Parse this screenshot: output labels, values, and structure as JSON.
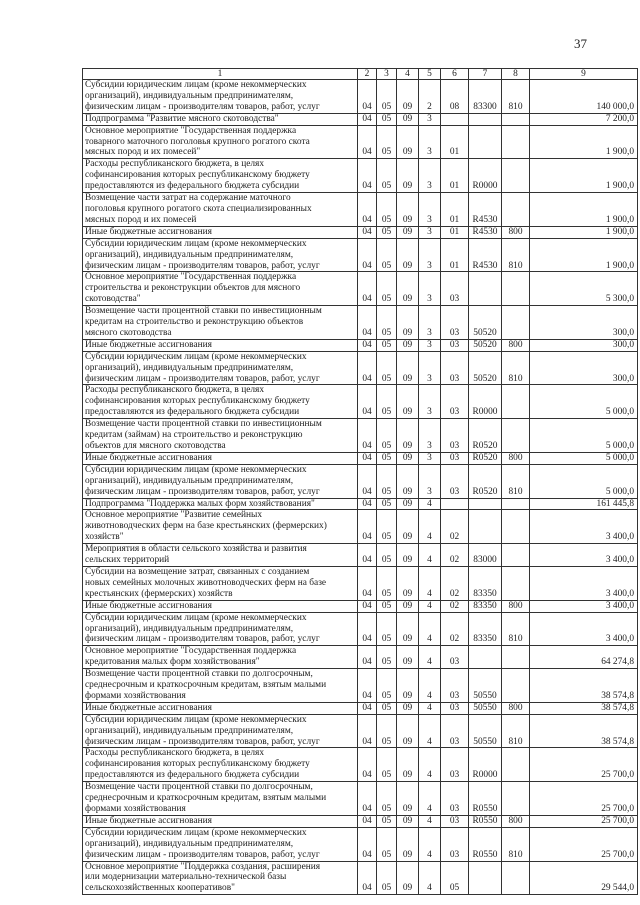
{
  "page_number": "37",
  "header": [
    "1",
    "2",
    "3",
    "4",
    "5",
    "6",
    "7",
    "8",
    "9"
  ],
  "rows": [
    [
      "Субсидии юридическим лицам (кроме некоммерческих\nорганизаций), индивидуальным предпринимателям,\nфизическим лицам - производителям товаров, работ, услуг",
      "04",
      "05",
      "09",
      "2",
      "08",
      "83300",
      "810",
      "140 000,0"
    ],
    [
      "Подпрограмма \"Развитие мясного скотоводства\"",
      "04",
      "05",
      "09",
      "3",
      "",
      "",
      "",
      "7 200,0"
    ],
    [
      "Основное мероприятие \"Государственная поддержка\nтоварного маточного поголовья крупного рогатого скота\nмясных пород и их помесей\"",
      "04",
      "05",
      "09",
      "3",
      "01",
      "",
      "",
      "1 900,0"
    ],
    [
      "Расходы республиканского бюджета, в целях\nсофинансирования которых республиканскому бюджету\nпредоставляются из федерального бюджета субсидии",
      "04",
      "05",
      "09",
      "3",
      "01",
      "R0000",
      "",
      "1 900,0"
    ],
    [
      "Возмещение части затрат на содержание маточного\nпоголовья крупного рогатого скота специализированных\nмясных пород и их помесей",
      "04",
      "05",
      "09",
      "3",
      "01",
      "R4530",
      "",
      "1 900,0"
    ],
    [
      "Иные бюджетные ассигнования",
      "04",
      "05",
      "09",
      "3",
      "01",
      "R4530",
      "800",
      "1 900,0"
    ],
    [
      "Субсидии юридическим лицам (кроме некоммерческих\nорганизаций), индивидуальным предпринимателям,\nфизическим лицам - производителям товаров, работ, услуг",
      "04",
      "05",
      "09",
      "3",
      "01",
      "R4530",
      "810",
      "1 900,0"
    ],
    [
      "Основное мероприятие \"Государственная поддержка\nстроительства и реконструкции объектов для мясного\nскотоводства\"",
      "04",
      "05",
      "09",
      "3",
      "03",
      "",
      "",
      "5 300,0"
    ],
    [
      "Возмещение части процентной ставки по инвестиционным\nкредитам на строительство и реконструкцию объектов\nмясного скотоводства",
      "04",
      "05",
      "09",
      "3",
      "03",
      "50520",
      "",
      "300,0"
    ],
    [
      "Иные бюджетные ассигнования",
      "04",
      "05",
      "09",
      "3",
      "03",
      "50520",
      "800",
      "300,0"
    ],
    [
      "Субсидии юридическим лицам (кроме некоммерческих\nорганизаций), индивидуальным предпринимателям,\nфизическим лицам - производителям товаров, работ, услуг",
      "04",
      "05",
      "09",
      "3",
      "03",
      "50520",
      "810",
      "300,0"
    ],
    [
      "Расходы республиканского бюджета, в целях\nсофинансирования которых республиканскому бюджету\nпредоставляются из федерального бюджета субсидии",
      "04",
      "05",
      "09",
      "3",
      "03",
      "R0000",
      "",
      "5 000,0"
    ],
    [
      "Возмещение части процентной ставки по инвестиционным\nкредитам (займам) на строительство и реконструкцию\nобъектов для мясного скотоводства",
      "04",
      "05",
      "09",
      "3",
      "03",
      "R0520",
      "",
      "5 000,0"
    ],
    [
      "Иные бюджетные ассигнования",
      "04",
      "05",
      "09",
      "3",
      "03",
      "R0520",
      "800",
      "5 000,0"
    ],
    [
      "Субсидии юридическим лицам (кроме некоммерческих\nорганизаций), индивидуальным предпринимателям,\nфизическим лицам - производителям товаров, работ, услуг",
      "04",
      "05",
      "09",
      "3",
      "03",
      "R0520",
      "810",
      "5 000,0"
    ],
    [
      "Подпрограмма \"Поддержка малых форм хозяйствования\"",
      "04",
      "05",
      "09",
      "4",
      "",
      "",
      "",
      "161 445,8"
    ],
    [
      "Основное мероприятие \"Развитие семейных\nживотноводческих ферм на базе крестьянских (фермерских)\nхозяйств\"",
      "04",
      "05",
      "09",
      "4",
      "02",
      "",
      "",
      "3 400,0"
    ],
    [
      "Мероприятия в области сельского хозяйства и развития\nсельских территорий",
      "04",
      "05",
      "09",
      "4",
      "02",
      "83000",
      "",
      "3 400,0"
    ],
    [
      "Субсидии на возмещение затрат, связанных с созданием\nновых семейных молочных животноводческих ферм на базе\nкрестьянских (фермерских) хозяйств",
      "04",
      "05",
      "09",
      "4",
      "02",
      "83350",
      "",
      "3 400,0"
    ],
    [
      "Иные бюджетные ассигнования",
      "04",
      "05",
      "09",
      "4",
      "02",
      "83350",
      "800",
      "3 400,0"
    ],
    [
      "Субсидии юридическим лицам (кроме некоммерческих\nорганизаций), индивидуальным предпринимателям,\nфизическим лицам - производителям товаров, работ, услуг",
      "04",
      "05",
      "09",
      "4",
      "02",
      "83350",
      "810",
      "3 400,0"
    ],
    [
      "Основное мероприятие \"Государственная поддержка\nкредитования малых форм хозяйствования\"",
      "04",
      "05",
      "09",
      "4",
      "03",
      "",
      "",
      "64 274,8"
    ],
    [
      "Возмещение части процентной ставки по долгосрочным,\nсреднесрочным и краткосрочным кредитам, взятым малыми\nформами хозяйствования",
      "04",
      "05",
      "09",
      "4",
      "03",
      "50550",
      "",
      "38 574,8"
    ],
    [
      "Иные бюджетные ассигнования",
      "04",
      "05",
      "09",
      "4",
      "03",
      "50550",
      "800",
      "38 574,8"
    ],
    [
      "Субсидии юридическим лицам (кроме некоммерческих\nорганизаций), индивидуальным предпринимателям,\nфизическим лицам - производителям товаров, работ, услуг",
      "04",
      "05",
      "09",
      "4",
      "03",
      "50550",
      "810",
      "38 574,8"
    ],
    [
      "Расходы республиканского бюджета, в целях\nсофинансирования которых республиканскому бюджету\nпредоставляются из федерального бюджета субсидии",
      "04",
      "05",
      "09",
      "4",
      "03",
      "R0000",
      "",
      "25 700,0"
    ],
    [
      "Возмещение части процентной ставки по долгосрочным,\nсреднесрочным и краткосрочным кредитам, взятым малыми\nформами хозяйствования",
      "04",
      "05",
      "09",
      "4",
      "03",
      "R0550",
      "",
      "25 700,0"
    ],
    [
      "Иные бюджетные ассигнования",
      "04",
      "05",
      "09",
      "4",
      "03",
      "R0550",
      "800",
      "25 700,0"
    ],
    [
      "Субсидии юридическим лицам (кроме некоммерческих\nорганизаций), индивидуальным предпринимателям,\nфизическим лицам - производителям товаров, работ, услуг",
      "04",
      "05",
      "09",
      "4",
      "03",
      "R0550",
      "810",
      "25 700,0"
    ],
    [
      "Основное мероприятие \"Поддержка создания, расширения\nили модернизации материально-технической базы\nсельскохозяйственных кооперативов\"",
      "04",
      "05",
      "09",
      "4",
      "05",
      "",
      "",
      "29 544,0"
    ]
  ]
}
